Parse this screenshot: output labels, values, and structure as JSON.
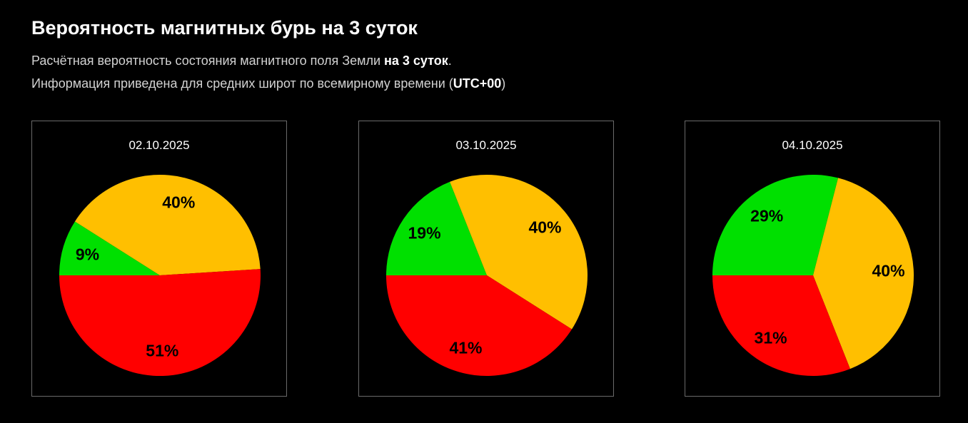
{
  "header": {
    "title": "Вероятность магнитных бурь на 3 суток",
    "line1_text": "Расчётная вероятность состояния магнитного поля Земли ",
    "line1_bold": "на 3 суток",
    "line1_end": ".",
    "line2_text": "Информация приведена для средних широт по всемирному времени (",
    "line2_bold": "UTC+00",
    "line2_end": ")"
  },
  "colors": {
    "green": "#00e000",
    "orange": "#ffbf00",
    "red": "#ff0000",
    "background": "#000000",
    "label": "#000000"
  },
  "chart_data": [
    {
      "type": "pie",
      "title": "02.10.2025",
      "slices": [
        {
          "value": 9,
          "label": "9%",
          "color": "#00e000"
        },
        {
          "value": 40,
          "label": "40%",
          "color": "#ffbf00"
        },
        {
          "value": 51,
          "label": "51%",
          "color": "#ff0000"
        }
      ]
    },
    {
      "type": "pie",
      "title": "03.10.2025",
      "slices": [
        {
          "value": 19,
          "label": "19%",
          "color": "#00e000"
        },
        {
          "value": 40,
          "label": "40%",
          "color": "#ffbf00"
        },
        {
          "value": 41,
          "label": "41%",
          "color": "#ff0000"
        }
      ]
    },
    {
      "type": "pie",
      "title": "04.10.2025",
      "slices": [
        {
          "value": 29,
          "label": "29%",
          "color": "#00e000"
        },
        {
          "value": 40,
          "label": "40%",
          "color": "#ffbf00"
        },
        {
          "value": 31,
          "label": "31%",
          "color": "#ff0000"
        }
      ]
    }
  ]
}
